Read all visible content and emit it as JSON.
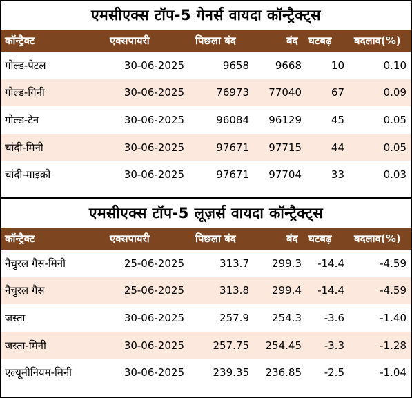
{
  "columns": [
    "कॉन्ट्रैक्ट",
    "एक्सपायरी",
    "पिछला बंद",
    "बंद",
    "घटबढ़",
    "बदलाव(%)"
  ],
  "gainers": {
    "title": "एमसीएक्स टॉप-5 गेनर्स वायदा कॉन्ट्रैक्ट्स",
    "rows": [
      [
        "गोल्ड-पेटल",
        "30-06-2025",
        "9658",
        "9668",
        "10",
        "0.10"
      ],
      [
        "गोल्ड-गिनी",
        "30-06-2025",
        "76973",
        "77040",
        "67",
        "0.09"
      ],
      [
        "गोल्ड-टेन",
        "30-06-2025",
        "96084",
        "96129",
        "45",
        "0.05"
      ],
      [
        "चांदी-मिनी",
        "30-06-2025",
        "97671",
        "97715",
        "44",
        "0.05"
      ],
      [
        "चांदी-माइक्रो",
        "30-06-2025",
        "97671",
        "97704",
        "33",
        "0.03"
      ]
    ]
  },
  "losers": {
    "title": "एमसीएक्स टॉप-5 लूज़र्स वायदा कॉन्ट्रैक्ट्स",
    "rows": [
      [
        "नैचुरल गैस-मिनी",
        "25-06-2025",
        "313.7",
        "299.3",
        "-14.4",
        "-4.59"
      ],
      [
        "नैचुरल गैस",
        "25-06-2025",
        "313.8",
        "299.4",
        "-14.4",
        "-4.59"
      ],
      [
        "जस्ता",
        "30-06-2025",
        "257.9",
        "254.3",
        "-3.6",
        "-1.40"
      ],
      [
        "जस्ता-मिनी",
        "30-06-2025",
        "257.75",
        "254.45",
        "-3.3",
        "-1.28"
      ],
      [
        "एल्यूमीनियम-मिनी",
        "30-06-2025",
        "239.35",
        "236.85",
        "-2.5",
        "-1.04"
      ]
    ]
  },
  "colors": {
    "header_bg": "#7d4520",
    "header_text": "#ffffff",
    "stripe": "#fde8dd"
  }
}
